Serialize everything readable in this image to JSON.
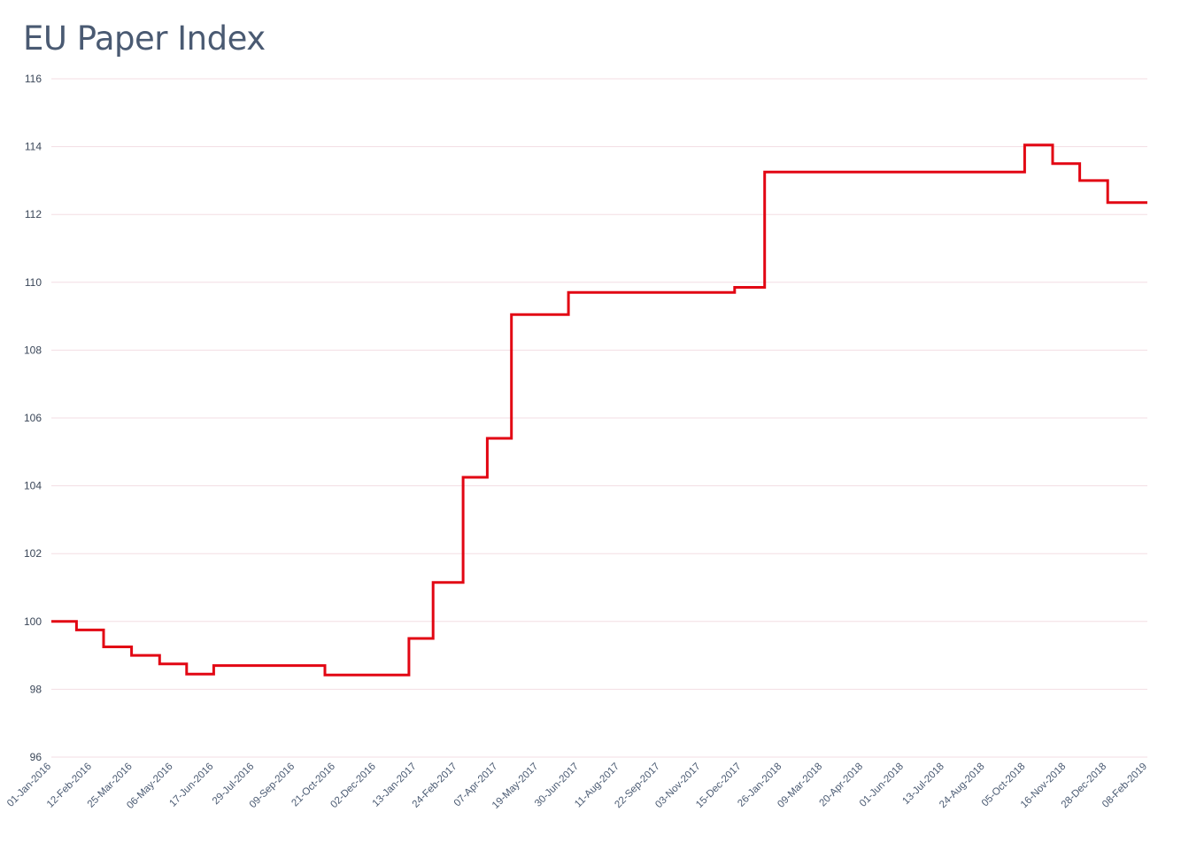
{
  "title": "EU Paper Index",
  "colors": {
    "line": "#e20613",
    "grid": "#f3dde3",
    "title": "#4a5a72"
  },
  "chart_data": {
    "type": "line",
    "title": "EU Paper Index",
    "xlabel": "",
    "ylabel": "",
    "x_range": [
      "2016-01-01",
      "2019-02-08"
    ],
    "ylim": [
      96,
      116
    ],
    "grid": true,
    "step": true,
    "y_ticks": [
      "96",
      "98",
      "100",
      "102",
      "104",
      "106",
      "108",
      "110",
      "112",
      "114",
      "116"
    ],
    "x_tick_labels": [
      "01-Jan-2016",
      "12-Feb-2016",
      "25-Mar-2016",
      "06-May-2016",
      "17-Jun-2016",
      "29-Jul-2016",
      "09-Sep-2016",
      "21-Oct-2016",
      "02-Dec-2016",
      "13-Jan-2017",
      "24-Feb-2017",
      "07-Apr-2017",
      "19-May-2017",
      "30-Jun-2017",
      "11-Aug-2017",
      "22-Sep-2017",
      "03-Nov-2017",
      "15-Dec-2017",
      "26-Jan-2018",
      "09-Mar-2018",
      "20-Apr-2018",
      "01-Jun-2018",
      "13-Jul-2018",
      "24-Aug-2018",
      "05-Oct-2018",
      "16-Nov-2018",
      "28-Dec-2018",
      "08-Feb-2019"
    ],
    "series": [
      {
        "x": [
          "2016-01-01",
          "2016-01-27",
          "2016-02-24",
          "2016-03-24",
          "2016-04-22",
          "2016-05-20",
          "2016-06-17",
          "2016-10-10",
          "2017-01-05",
          "2017-01-30",
          "2017-03-02",
          "2017-03-27",
          "2017-04-21",
          "2017-06-19",
          "2017-09-12",
          "2017-12-08",
          "2018-01-08",
          "2018-10-04",
          "2018-11-02",
          "2018-11-30",
          "2018-12-29",
          "2019-02-08"
        ],
        "values": [
          100.0,
          99.75,
          99.25,
          99.0,
          98.75,
          98.45,
          98.7,
          98.42,
          99.5,
          101.15,
          104.25,
          105.4,
          109.05,
          109.7,
          109.7,
          109.85,
          113.25,
          114.05,
          113.5,
          113.0,
          112.35,
          112.35
        ]
      }
    ]
  }
}
